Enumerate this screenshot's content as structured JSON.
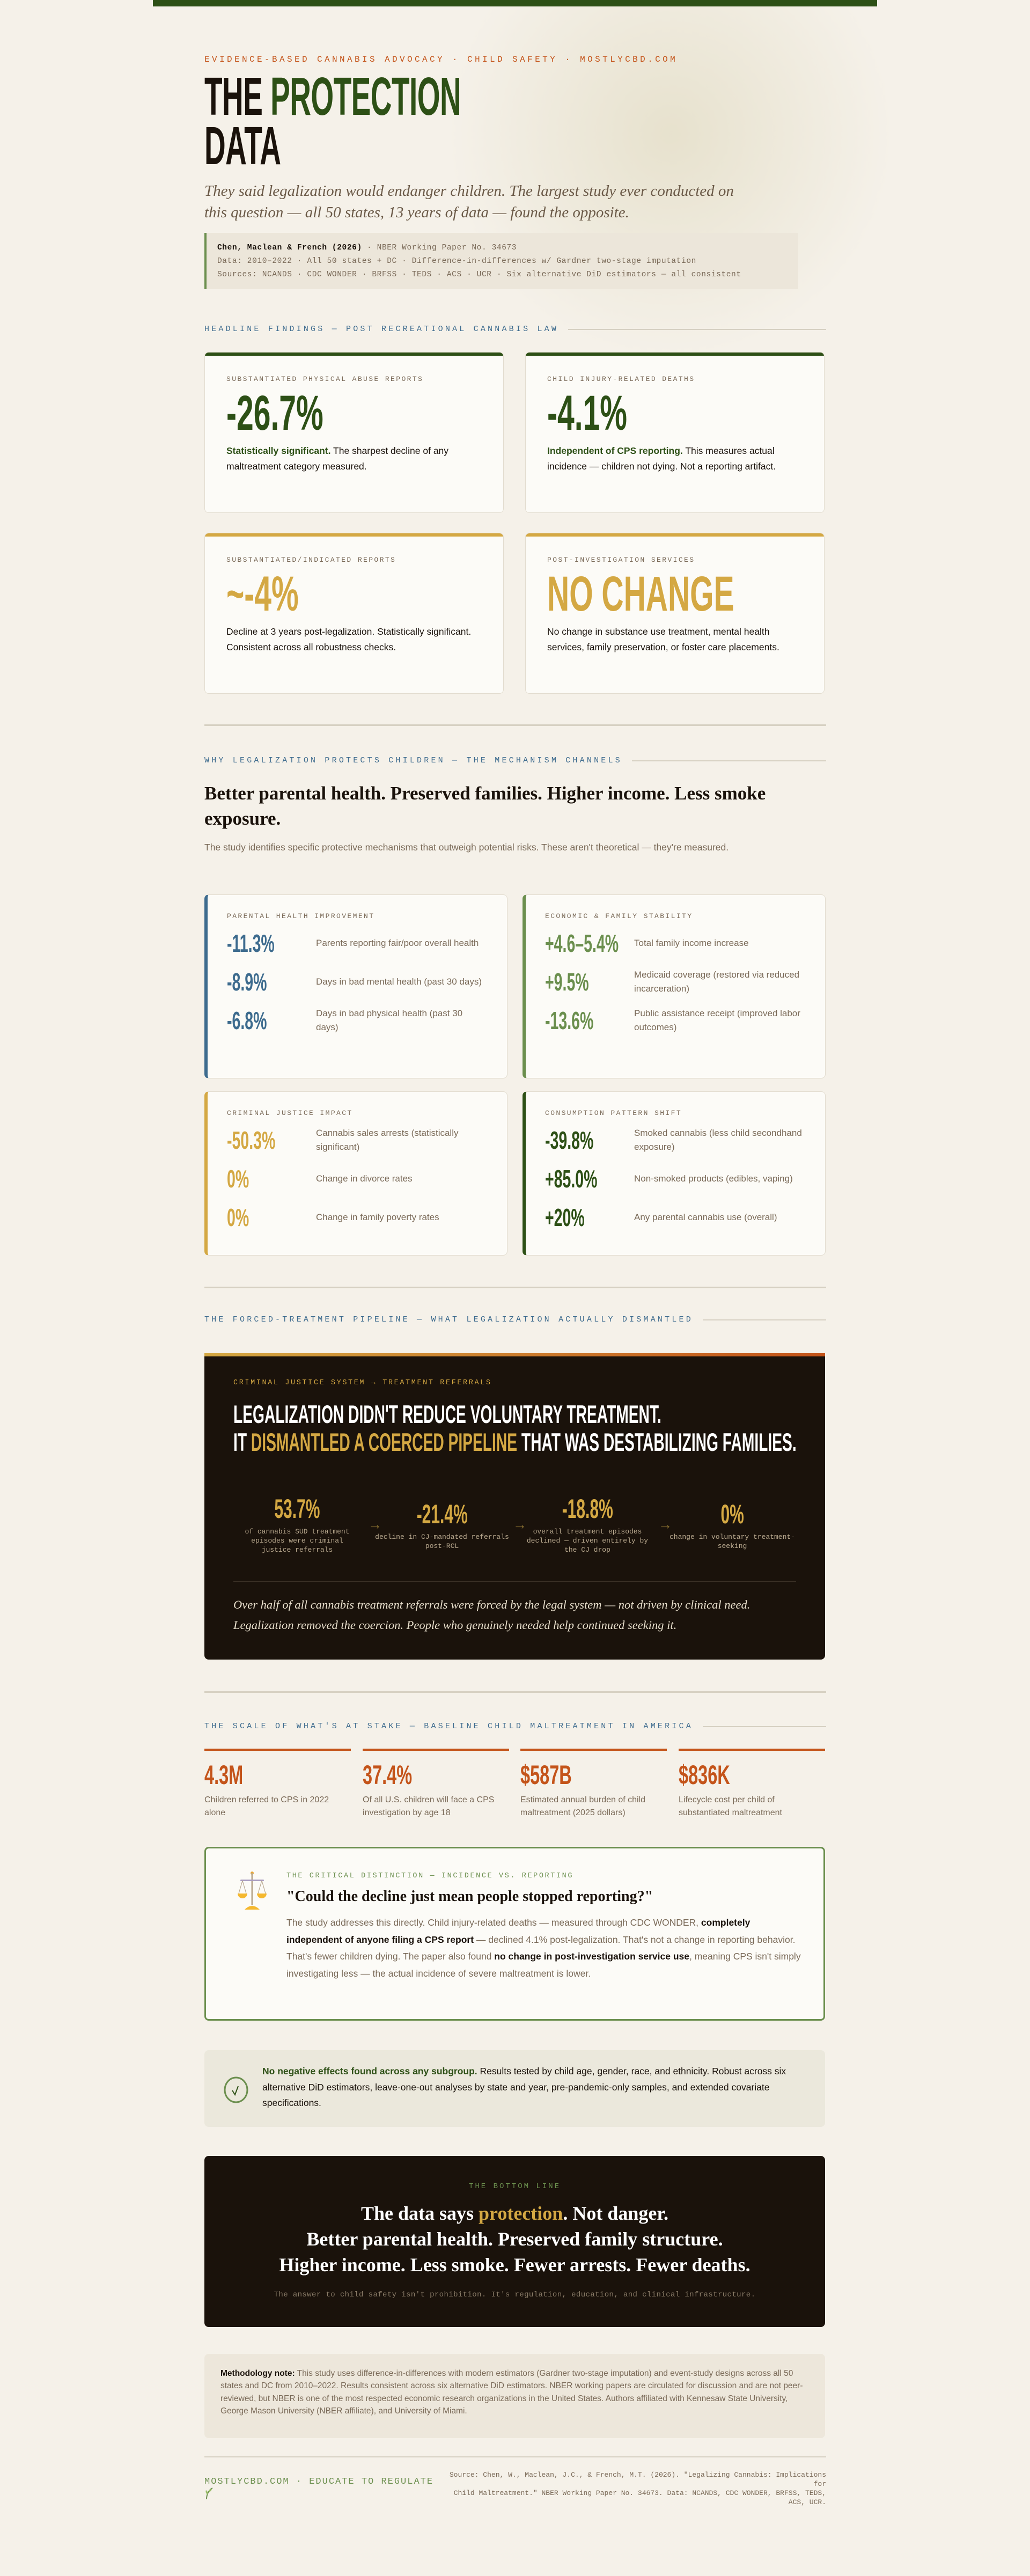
{
  "colors": {
    "forest": "#2d5016",
    "gold": "#d4a843",
    "rust": "#c4541a",
    "blue": "#3d6b8e",
    "sage": "#6b8f4e",
    "ink": "#1a120b",
    "paper": "#f5f1e9"
  },
  "header": {
    "kicker": "EVIDENCE-BASED CANNABIS ADVOCACY · CHILD SAFETY · MOSTLYCBD.COM",
    "title_1a": "THE",
    "title_1b": "PROTECTION",
    "title_2": "DATA",
    "subtitle": "They said legalization would endanger children. The largest study ever conducted on this question — all 50 states, 13 years of data — found the opposite.",
    "citation": {
      "authors": "Chen, Maclean & French (2026)",
      "paper": " · NBER Working Paper No. 34673",
      "line2": "Data: 2010–2022 · All 50 states + DC · Difference-in-differences w/ Gardner two-stage imputation",
      "line3": "Sources: NCANDS · CDC WONDER · BRFSS · TEDS · ACS · UCR · Six alternative DiD estimators — all consistent"
    }
  },
  "headline": {
    "label": "HEADLINE FINDINGS — POST RECREATIONAL CANNABIS LAW",
    "cards": [
      {
        "label": "SUBSTANTIATED PHYSICAL ABUSE REPORTS",
        "value": "-26.7%",
        "lead": "Statistically significant.",
        "desc": " The sharpest decline of any maltreatment category measured.",
        "accent": "#2d5016"
      },
      {
        "label": "CHILD INJURY-RELATED DEATHS",
        "value": "-4.1%",
        "lead": "Independent of CPS reporting.",
        "desc": " This measures actual incidence — children not dying. Not a reporting artifact.",
        "accent": "#2d5016"
      },
      {
        "label": "SUBSTANTIATED/INDICATED REPORTS",
        "value": "~-4%",
        "lead": "",
        "desc": "Decline at 3 years post-legalization. Statistically significant. Consistent across all robustness checks.",
        "accent": "#d4a843"
      },
      {
        "label": "POST-INVESTIGATION SERVICES",
        "value": "NO CHANGE",
        "lead": "",
        "desc": "No change in substance use treatment, mental health services, family preservation, or foster care placements.",
        "accent": "#d4a843"
      }
    ]
  },
  "mechanism": {
    "label": "WHY LEGALIZATION PROTECTS CHILDREN — THE MECHANISM CHANNELS",
    "headline": "Better parental health. Preserved families. Higher income. Less smoke exposure.",
    "desc": "The study identifies specific protective mechanisms that outweigh potential risks. These aren't theoretical — they're measured.",
    "cards": [
      {
        "label": "PARENTAL HEALTH IMPROVEMENT",
        "accent": "#3d6b8e",
        "rows": [
          {
            "value": "-11.3%",
            "desc": "Parents reporting fair/poor overall health"
          },
          {
            "value": "-8.9%",
            "desc": "Days in bad mental health (past 30 days)"
          },
          {
            "value": "-6.8%",
            "desc": "Days in bad physical health (past 30 days)"
          }
        ]
      },
      {
        "label": "ECONOMIC & FAMILY STABILITY",
        "accent": "#6b8f4e",
        "rows": [
          {
            "value": "+4.6–5.4%",
            "desc": "Total family income increase"
          },
          {
            "value": "+9.5%",
            "desc": "Medicaid coverage (restored via reduced incarceration)"
          },
          {
            "value": "-13.6%",
            "desc": "Public assistance receipt (improved labor outcomes)"
          }
        ]
      },
      {
        "label": "CRIMINAL JUSTICE IMPACT",
        "accent": "#d4a843",
        "rows": [
          {
            "value": "-50.3%",
            "desc": "Cannabis sales arrests (statistically significant)"
          },
          {
            "value": "0%",
            "desc": "Change in divorce rates"
          },
          {
            "value": "0%",
            "desc": "Change in family poverty rates"
          }
        ]
      },
      {
        "label": "CONSUMPTION PATTERN SHIFT",
        "accent": "#2d5016",
        "rows": [
          {
            "value": "-39.8%",
            "desc": "Smoked cannabis (less child secondhand exposure)"
          },
          {
            "value": "+85.0%",
            "desc": "Non-smoked products (edibles, vaping)"
          },
          {
            "value": "+20%",
            "desc": "Any parental cannabis use (overall)"
          }
        ]
      }
    ]
  },
  "pipeline": {
    "label": "THE FORCED-TREATMENT PIPELINE — WHAT LEGALIZATION ACTUALLY DISMANTLED",
    "kicker": "CRIMINAL JUSTICE SYSTEM → TREATMENT REFERRALS",
    "headline_1": "LEGALIZATION DIDN'T REDUCE VOLUNTARY TREATMENT.",
    "headline_2a": "IT ",
    "headline_2b": "DISMANTLED A COERCED PIPELINE",
    "headline_2c": " THAT WAS DESTABILIZING FAMILIES.",
    "stats": [
      {
        "value": "53.7%",
        "caption": "of cannabis SUD treatment episodes were criminal justice referrals"
      },
      {
        "value": "-21.4%",
        "caption": "decline in CJ-mandated referrals post-RCL"
      },
      {
        "value": "-18.8%",
        "caption": "overall treatment episodes declined — driven entirely by the CJ drop"
      },
      {
        "value": "0%",
        "caption": "change in voluntary treatment-seeking"
      }
    ],
    "arrow": "→",
    "quote": "Over half of all cannabis treatment referrals were forced by the legal system — not driven by clinical need. Legalization removed the coercion. People who genuinely needed help continued seeking it."
  },
  "scale": {
    "label": "THE SCALE OF WHAT'S AT STAKE — BASELINE CHILD MALTREATMENT IN AMERICA",
    "stats": [
      {
        "value": "4.3M",
        "desc": "Children referred to CPS in 2022 alone"
      },
      {
        "value": "37.4%",
        "desc": "Of all U.S. children will face a CPS investigation by age 18"
      },
      {
        "value": "$587B",
        "desc": "Estimated annual burden of child maltreatment (2025 dollars)"
      },
      {
        "value": "$836K",
        "desc": "Lifecycle cost per child of substantiated maltreatment"
      }
    ]
  },
  "distinction": {
    "icon": "balance-scale-icon",
    "label": "THE CRITICAL DISTINCTION — INCIDENCE VS. REPORTING",
    "question": "\"Could the decline just mean people stopped reporting?\"",
    "p1": "The study addresses this directly. Child injury-related deaths — measured through CDC WONDER, ",
    "b1": "completely independent of anyone filing a CPS report",
    "p2": " — declined 4.1% post-legalization. That's not a change in reporting behavior. That's fewer children dying. The paper also found ",
    "b2": "no change in post-investigation service use",
    "p3": ", meaning CPS isn't simply investigating less — the actual incidence of severe maltreatment is lower."
  },
  "robust": {
    "icon": "check-circle-icon",
    "lead": "No negative effects found across any subgroup.",
    "text": " Results tested by child age, gender, race, and ethnicity. Robust across six alternative DiD estimators, leave-one-out analyses by state and year, pre-pandemic-only samples, and extended covariate specifications."
  },
  "bottom_line": {
    "kicker": "THE BOTTOM LINE",
    "h_a": "The data says ",
    "h_b": "protection",
    "h_c": ". Not danger.",
    "h_2": "Better parental health. Preserved family structure. Higher income. Less smoke. Fewer arrests. Fewer deaths.",
    "sub": "The answer to child safety isn't prohibition. It's regulation, education, and clinical infrastructure."
  },
  "methodology": {
    "lead": "Methodology note:",
    "text": " This study uses difference-in-differences with modern estimators (Gardner two-stage imputation) and event-study designs across all 50 states and DC from 2010–2022. Results consistent across six alternative DiD estimators. NBER working papers are circulated for discussion and are not peer-reviewed, but NBER is one of the most respected economic research organizations in the United States. Authors affiliated with Kennesaw State University, George Mason University (NBER affiliate), and University of Miami."
  },
  "footer": {
    "brand": "MOSTLYCBD.COM · EDUCATE TO REGULATE",
    "icon": "leaf-icon",
    "source_1": "Source: Chen, W., Maclean, J.C., & French, M.T. (2026). \"Legalizing Cannabis: Implications for",
    "source_2": "Child Maltreatment.\" NBER Working Paper No. 34673. Data: NCANDS, CDC WONDER, BRFSS, TEDS, ACS, UCR."
  }
}
